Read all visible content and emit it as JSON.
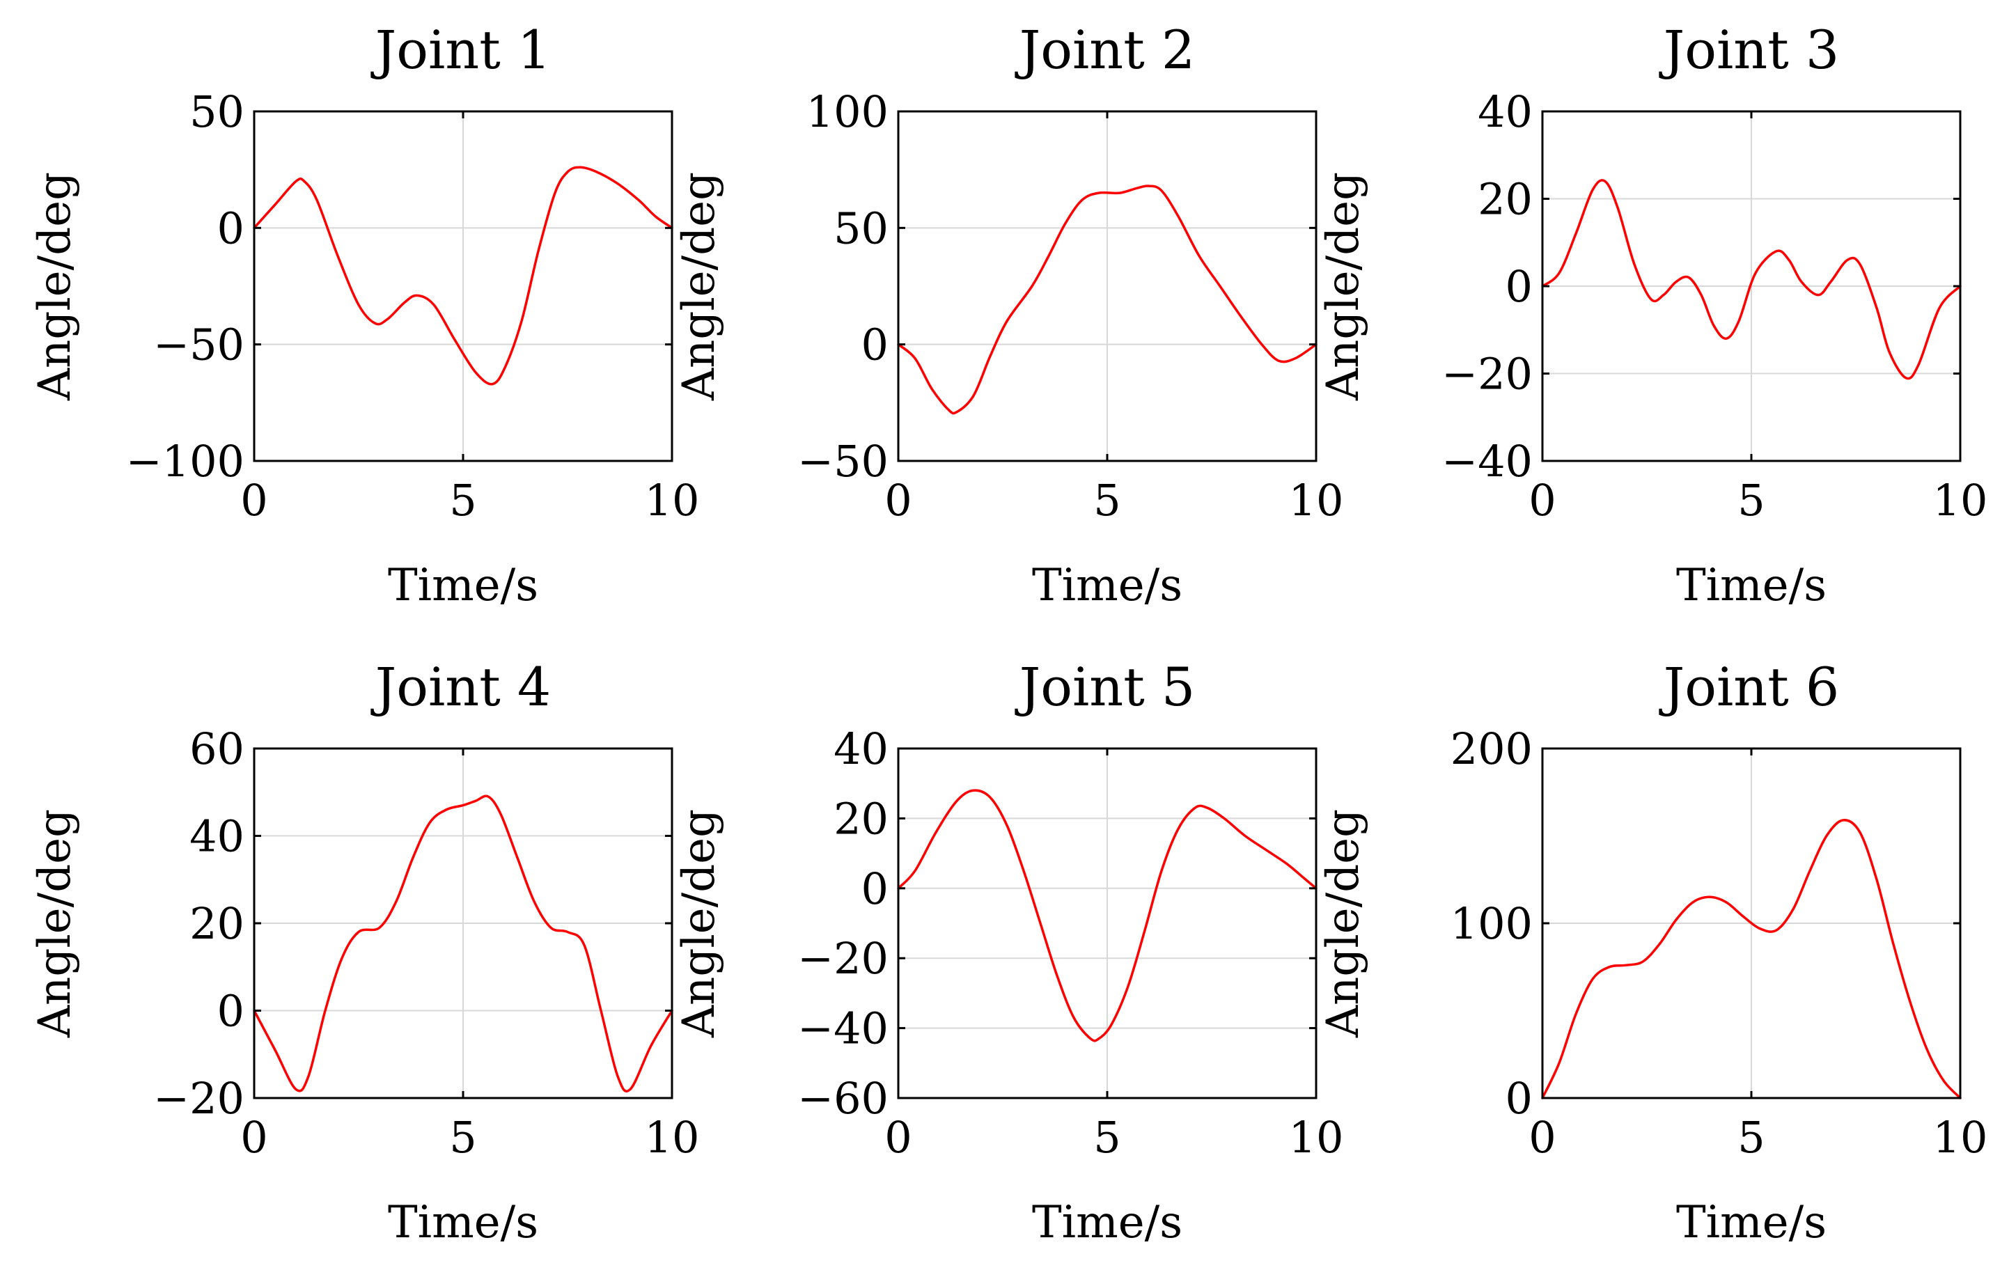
{
  "colors": {
    "series": "#ff0000",
    "grid": "#d8d8d8",
    "axis": "#000000"
  },
  "chart_data": [
    {
      "type": "line",
      "title": "Joint 1",
      "xlabel": "Time/s",
      "ylabel": "Angle/deg",
      "xlim": [
        0,
        10
      ],
      "ylim": [
        -100,
        50
      ],
      "xticks": [
        0,
        5,
        10
      ],
      "yticks": [
        -100,
        -50,
        0,
        50
      ],
      "xtick_labels": [
        "0",
        "5",
        "10"
      ],
      "ytick_labels": [
        "−100",
        "−50",
        "0",
        "50"
      ],
      "grid": true,
      "series": [
        {
          "name": "Joint 1",
          "x": [
            0,
            0.5,
            1.0,
            1.2,
            1.5,
            2.0,
            2.5,
            2.9,
            3.2,
            3.6,
            3.9,
            4.3,
            4.8,
            5.3,
            5.7,
            6.0,
            6.4,
            6.8,
            7.2,
            7.5,
            7.8,
            8.2,
            8.7,
            9.2,
            9.6,
            10.0
          ],
          "values": [
            0,
            10,
            20,
            20,
            12,
            -12,
            -33,
            -41,
            -39,
            -32,
            -29,
            -33,
            -48,
            -62,
            -67,
            -60,
            -40,
            -10,
            15,
            24,
            26,
            24,
            19,
            12,
            5,
            0
          ]
        }
      ]
    },
    {
      "type": "line",
      "title": "Joint 2",
      "xlabel": "Time/s",
      "ylabel": "Angle/deg",
      "xlim": [
        0,
        10
      ],
      "ylim": [
        -50,
        100
      ],
      "xticks": [
        0,
        5,
        10
      ],
      "yticks": [
        -50,
        0,
        50,
        100
      ],
      "xtick_labels": [
        "0",
        "5",
        "10"
      ],
      "ytick_labels": [
        "−50",
        "0",
        "50",
        "100"
      ],
      "grid": true,
      "series": [
        {
          "name": "Joint 2",
          "x": [
            0,
            0.4,
            0.8,
            1.2,
            1.4,
            1.8,
            2.2,
            2.6,
            3.2,
            3.6,
            4.0,
            4.4,
            4.8,
            5.3,
            5.7,
            6.0,
            6.3,
            6.7,
            7.2,
            7.7,
            8.2,
            8.7,
            9.1,
            9.5,
            10.0
          ],
          "values": [
            0,
            -6,
            -19,
            -28,
            -29,
            -22,
            -5,
            10,
            25,
            38,
            52,
            62,
            65,
            65,
            67,
            68,
            66,
            55,
            38,
            25,
            12,
            0,
            -7,
            -6,
            0
          ]
        }
      ]
    },
    {
      "type": "line",
      "title": "Joint 3",
      "xlabel": "Time/s",
      "ylabel": "Angle/deg",
      "xlim": [
        0,
        10
      ],
      "ylim": [
        -40,
        40
      ],
      "xticks": [
        0,
        5,
        10
      ],
      "yticks": [
        -40,
        -20,
        0,
        20,
        40
      ],
      "xtick_labels": [
        "0",
        "5",
        "10"
      ],
      "ytick_labels": [
        "−40",
        "−20",
        "0",
        "20",
        "40"
      ],
      "grid": true,
      "series": [
        {
          "name": "Joint 3",
          "x": [
            0,
            0.4,
            0.8,
            1.2,
            1.5,
            1.8,
            2.2,
            2.6,
            2.9,
            3.2,
            3.5,
            3.8,
            4.1,
            4.4,
            4.7,
            5.1,
            5.6,
            5.9,
            6.2,
            6.6,
            6.9,
            7.3,
            7.6,
            8.0,
            8.3,
            8.7,
            9.0,
            9.5,
            10.0
          ],
          "values": [
            0,
            3,
            12,
            22,
            24,
            18,
            5,
            -3,
            -2,
            1,
            2,
            -2,
            -9,
            -12,
            -8,
            3,
            8,
            6,
            1,
            -2,
            1,
            6,
            5,
            -5,
            -15,
            -21,
            -18,
            -5,
            0
          ]
        }
      ]
    },
    {
      "type": "line",
      "title": "Joint 4",
      "xlabel": "Time/s",
      "ylabel": "Angle/deg",
      "xlim": [
        0,
        10
      ],
      "ylim": [
        -20,
        60
      ],
      "xticks": [
        0,
        5,
        10
      ],
      "yticks": [
        -20,
        0,
        20,
        40,
        60
      ],
      "xtick_labels": [
        "0",
        "5",
        "10"
      ],
      "ytick_labels": [
        "−20",
        "0",
        "20",
        "40",
        "60"
      ],
      "grid": true,
      "series": [
        {
          "name": "Joint 4",
          "x": [
            0,
            0.5,
            1.0,
            1.3,
            1.7,
            2.1,
            2.5,
            3.0,
            3.4,
            3.8,
            4.2,
            4.6,
            5.0,
            5.3,
            5.6,
            5.9,
            6.3,
            6.7,
            7.1,
            7.5,
            7.9,
            8.3,
            8.7,
            9.0,
            9.5,
            10.0
          ],
          "values": [
            0,
            -9,
            -18,
            -15,
            0,
            12,
            18,
            19,
            25,
            35,
            43,
            46,
            47,
            48,
            49,
            45,
            35,
            25,
            19,
            18,
            15,
            0,
            -15,
            -18,
            -8,
            0
          ]
        }
      ]
    },
    {
      "type": "line",
      "title": "Joint 5",
      "xlabel": "Time/s",
      "ylabel": "Angle/deg",
      "xlim": [
        0,
        10
      ],
      "ylim": [
        -60,
        40
      ],
      "xticks": [
        0,
        5,
        10
      ],
      "yticks": [
        -60,
        -40,
        -20,
        0,
        20,
        40
      ],
      "xtick_labels": [
        "0",
        "5",
        "10"
      ],
      "ytick_labels": [
        "−60",
        "−40",
        "−20",
        "0",
        "20",
        "40"
      ],
      "grid": true,
      "series": [
        {
          "name": "Joint 5",
          "x": [
            0,
            0.4,
            0.9,
            1.4,
            1.8,
            2.2,
            2.6,
            3.0,
            3.4,
            3.8,
            4.2,
            4.6,
            4.8,
            5.1,
            5.5,
            5.9,
            6.3,
            6.7,
            7.1,
            7.4,
            7.8,
            8.3,
            8.8,
            9.3,
            9.7,
            10.0
          ],
          "values": [
            0,
            5,
            16,
            25,
            28,
            26,
            18,
            5,
            -10,
            -25,
            -37,
            -43,
            -43,
            -39,
            -28,
            -12,
            5,
            17,
            23,
            23,
            20,
            15,
            11,
            7,
            3,
            0
          ]
        }
      ]
    },
    {
      "type": "line",
      "title": "Joint 6",
      "xlabel": "Time/s",
      "ylabel": "Angle/deg",
      "xlim": [
        0,
        10
      ],
      "ylim": [
        0,
        200
      ],
      "xticks": [
        0,
        5,
        10
      ],
      "yticks": [
        0,
        100,
        200
      ],
      "xtick_labels": [
        "0",
        "5",
        "10"
      ],
      "ytick_labels": [
        "0",
        "100",
        "200"
      ],
      "grid": true,
      "series": [
        {
          "name": "Joint 6",
          "x": [
            0,
            0.4,
            0.8,
            1.2,
            1.6,
            2.0,
            2.4,
            2.8,
            3.2,
            3.6,
            4.0,
            4.4,
            4.8,
            5.2,
            5.6,
            6.0,
            6.4,
            6.8,
            7.2,
            7.6,
            8.0,
            8.4,
            8.8,
            9.2,
            9.6,
            10.0
          ],
          "values": [
            0,
            20,
            48,
            68,
            75,
            76,
            78,
            88,
            102,
            112,
            115,
            112,
            104,
            97,
            96,
            108,
            130,
            150,
            159,
            152,
            125,
            88,
            55,
            28,
            10,
            0
          ]
        }
      ]
    }
  ]
}
